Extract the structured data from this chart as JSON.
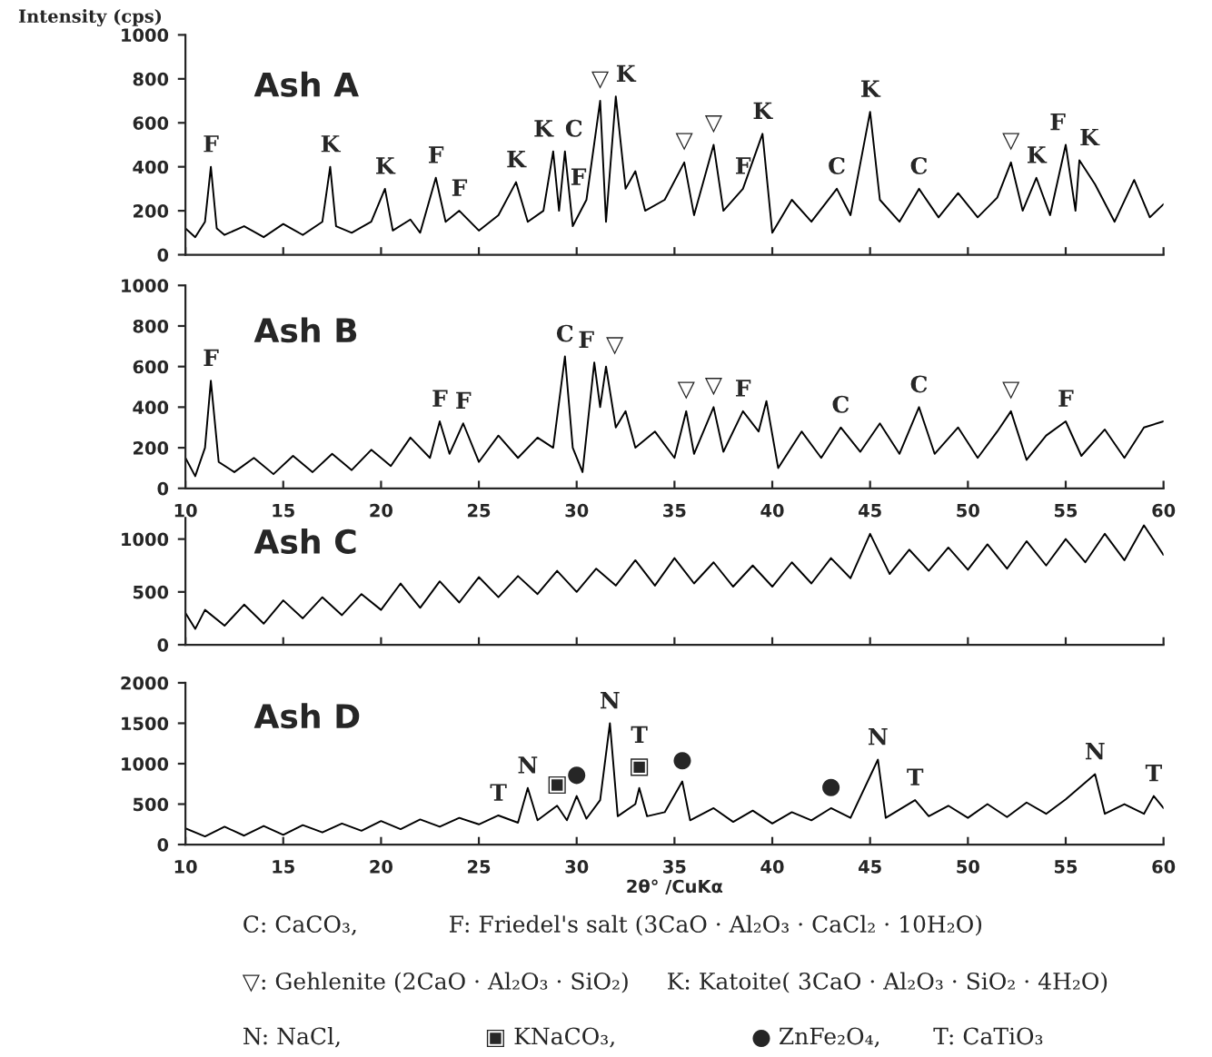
{
  "chart_data": [
    {
      "type": "line",
      "title": "Ash A",
      "ylabel": "Intensity (cps)",
      "xlim": [
        10,
        60
      ],
      "xticks": [
        10,
        15,
        20,
        25,
        30,
        35,
        40,
        45,
        50,
        55,
        60
      ],
      "ylim": [
        0,
        1000
      ],
      "yticks": [
        0,
        200,
        400,
        600,
        800,
        1000
      ],
      "tick_labels": "y",
      "x": [
        10,
        10.5,
        11,
        11.3,
        11.6,
        12,
        13,
        14,
        15,
        16,
        17,
        17.4,
        17.7,
        18.5,
        19.5,
        20.2,
        20.6,
        21.5,
        22,
        22.8,
        23.3,
        24,
        25,
        26,
        26.9,
        27.5,
        28.3,
        28.8,
        29.1,
        29.4,
        29.8,
        30.5,
        31.2,
        31.5,
        32,
        32.5,
        33,
        33.5,
        34.5,
        35.5,
        36,
        37,
        37.5,
        38.5,
        39.5,
        40,
        41,
        42,
        43.3,
        44,
        45,
        45.5,
        46.5,
        47.5,
        48.5,
        49.5,
        50.5,
        51.5,
        52.2,
        52.8,
        53.5,
        54.2,
        55,
        55.5,
        55.7,
        56.5,
        57.5,
        58.5,
        59.3,
        60
      ],
      "series": [
        {
          "color": "#000000",
          "values": [
            120,
            80,
            150,
            400,
            120,
            90,
            130,
            80,
            140,
            90,
            150,
            400,
            130,
            100,
            150,
            300,
            110,
            160,
            100,
            350,
            150,
            200,
            110,
            180,
            330,
            150,
            200,
            470,
            200,
            470,
            130,
            250,
            700,
            150,
            720,
            300,
            380,
            200,
            250,
            420,
            180,
            500,
            200,
            300,
            550,
            100,
            250,
            150,
            300,
            180,
            650,
            250,
            150,
            300,
            170,
            280,
            170,
            260,
            420,
            200,
            350,
            180,
            500,
            200,
            430,
            320,
            150,
            340,
            170,
            230
          ]
        }
      ],
      "annotations": [
        {
          "text": "F",
          "x": 11.3,
          "y": 400
        },
        {
          "text": "K",
          "x": 17.4,
          "y": 400
        },
        {
          "text": "K",
          "x": 20.2,
          "y": 300
        },
        {
          "text": "F",
          "x": 22.8,
          "y": 350
        },
        {
          "text": "F",
          "x": 24,
          "y": 200
        },
        {
          "text": "K",
          "x": 26.9,
          "y": 330
        },
        {
          "text": "K",
          "x": 28.8,
          "y": 470
        },
        {
          "text": "C",
          "x": 29.4,
          "y": 470
        },
        {
          "text": "F",
          "x": 30.5,
          "y": 250
        },
        {
          "text": "▽",
          "x": 31.2,
          "y": 700
        },
        {
          "text": "K",
          "x": 32,
          "y": 720
        },
        {
          "text": "▽",
          "x": 35.5,
          "y": 420
        },
        {
          "text": "▽",
          "x": 37,
          "y": 500
        },
        {
          "text": "F",
          "x": 38.5,
          "y": 300
        },
        {
          "text": "K",
          "x": 39.5,
          "y": 550
        },
        {
          "text": "C",
          "x": 43.3,
          "y": 300
        },
        {
          "text": "K",
          "x": 45,
          "y": 650
        },
        {
          "text": "C",
          "x": 47.5,
          "y": 300
        },
        {
          "text": "▽",
          "x": 52.2,
          "y": 420
        },
        {
          "text": "K",
          "x": 53.5,
          "y": 350
        },
        {
          "text": "F",
          "x": 55,
          "y": 500
        },
        {
          "text": "K",
          "x": 55.7,
          "y": 430
        }
      ]
    },
    {
      "type": "line",
      "title": "Ash B",
      "xlim": [
        10,
        60
      ],
      "xticks": [
        10,
        15,
        20,
        25,
        30,
        35,
        40,
        45,
        50,
        55,
        60
      ],
      "ylim": [
        0,
        1000
      ],
      "yticks": [
        0,
        200,
        400,
        600,
        800,
        1000
      ],
      "x": [
        10,
        10.5,
        11,
        11.3,
        11.7,
        12.5,
        13.5,
        14.5,
        15.5,
        16.5,
        17.5,
        18.5,
        19.5,
        20.5,
        21.5,
        22.5,
        23,
        23.5,
        24.2,
        25,
        26,
        27,
        28,
        28.8,
        29.4,
        29.8,
        30.3,
        30.9,
        31.2,
        31.5,
        32,
        32.5,
        33,
        34,
        35,
        35.6,
        36,
        37,
        37.5,
        38.5,
        39.3,
        39.7,
        40.3,
        41.5,
        42.5,
        43.5,
        44.5,
        45.5,
        46.5,
        47.5,
        48.3,
        49.5,
        50.5,
        51.5,
        52.2,
        53,
        54,
        55,
        55.8,
        57,
        58,
        59,
        60
      ],
      "series": [
        {
          "color": "#000000",
          "values": [
            150,
            60,
            200,
            530,
            130,
            80,
            150,
            70,
            160,
            80,
            170,
            90,
            190,
            110,
            250,
            150,
            330,
            170,
            320,
            130,
            260,
            150,
            250,
            200,
            650,
            200,
            80,
            620,
            400,
            600,
            300,
            380,
            200,
            280,
            150,
            380,
            170,
            400,
            180,
            380,
            280,
            430,
            100,
            280,
            150,
            300,
            180,
            320,
            170,
            400,
            170,
            300,
            150,
            280,
            380,
            140,
            260,
            330,
            160,
            290,
            150,
            300,
            330
          ]
        }
      ],
      "annotations": [
        {
          "text": "F",
          "x": 11.3,
          "y": 530
        },
        {
          "text": "F",
          "x": 23,
          "y": 330
        },
        {
          "text": "F",
          "x": 24.2,
          "y": 320
        },
        {
          "text": "C",
          "x": 29.4,
          "y": 650
        },
        {
          "text": "F",
          "x": 30.9,
          "y": 620
        },
        {
          "text": "▽",
          "x": 31.5,
          "y": 600
        },
        {
          "text": "▽",
          "x": 35.6,
          "y": 380
        },
        {
          "text": "▽",
          "x": 37,
          "y": 400
        },
        {
          "text": "F",
          "x": 38.5,
          "y": 380
        },
        {
          "text": "C",
          "x": 43.5,
          "y": 300
        },
        {
          "text": "C",
          "x": 47.5,
          "y": 400
        },
        {
          "text": "▽",
          "x": 52.2,
          "y": 380
        },
        {
          "text": "F",
          "x": 55,
          "y": 330
        }
      ]
    },
    {
      "type": "line",
      "title": "Ash C",
      "xlim": [
        10,
        60
      ],
      "xticks": [
        10,
        15,
        20,
        25,
        30,
        35,
        40,
        45,
        50,
        55,
        60
      ],
      "ylim": [
        0,
        1200
      ],
      "yticks": [
        0,
        500,
        1000
      ],
      "tick_labels": "y",
      "x": [
        10,
        10.5,
        11,
        12,
        13,
        14,
        15,
        16,
        17,
        18,
        19,
        20,
        21,
        22,
        23,
        24,
        25,
        26,
        27,
        28,
        29,
        30,
        31,
        32,
        33,
        34,
        35,
        36,
        37,
        38,
        39,
        40,
        41,
        42,
        43,
        44,
        45,
        46,
        47,
        48,
        49,
        50,
        51,
        52,
        53,
        54,
        55,
        56,
        57,
        58,
        59,
        60
      ],
      "series": [
        {
          "color": "#000000",
          "values": [
            300,
            150,
            330,
            180,
            380,
            200,
            420,
            250,
            450,
            280,
            480,
            330,
            580,
            350,
            600,
            400,
            640,
            450,
            650,
            480,
            700,
            500,
            720,
            560,
            800,
            560,
            820,
            580,
            780,
            550,
            750,
            550,
            780,
            580,
            820,
            630,
            1050,
            670,
            900,
            700,
            920,
            710,
            950,
            720,
            980,
            750,
            1000,
            780,
            1050,
            800,
            1130,
            850
          ]
        }
      ]
    },
    {
      "type": "line",
      "title": "Ash D",
      "xlabel": "2θ° /CuKα",
      "xlim": [
        10,
        60
      ],
      "xticks": [
        10,
        15,
        20,
        25,
        30,
        35,
        40,
        45,
        50,
        55,
        60
      ],
      "ylim": [
        0,
        2000
      ],
      "yticks": [
        0,
        500,
        1000,
        1500,
        2000
      ],
      "x": [
        10,
        11,
        12,
        13,
        14,
        15,
        16,
        17,
        18,
        19,
        20,
        21,
        22,
        23,
        24,
        25,
        26,
        27,
        27.5,
        28,
        29,
        29.5,
        30,
        30.5,
        31.2,
        31.7,
        32.1,
        33,
        33.2,
        33.6,
        34.5,
        35.4,
        35.8,
        37,
        38,
        39,
        40,
        41,
        42,
        43,
        44,
        45.4,
        45.8,
        47.3,
        48,
        49,
        50,
        51,
        52,
        53,
        54,
        55,
        56.5,
        57,
        58,
        59,
        59.5,
        60
      ],
      "series": [
        {
          "color": "#000000",
          "values": [
            200,
            100,
            220,
            110,
            230,
            120,
            240,
            150,
            260,
            170,
            290,
            190,
            310,
            220,
            330,
            250,
            360,
            270,
            700,
            300,
            480,
            300,
            600,
            320,
            550,
            1500,
            350,
            500,
            700,
            350,
            400,
            780,
            300,
            450,
            280,
            420,
            260,
            400,
            300,
            450,
            330,
            1050,
            330,
            550,
            350,
            480,
            330,
            500,
            340,
            520,
            380,
            560,
            870,
            380,
            500,
            380,
            600,
            450
          ]
        }
      ],
      "annotations": [
        {
          "text": "T",
          "x": 26,
          "y": 360
        },
        {
          "text": "N",
          "x": 27.5,
          "y": 700
        },
        {
          "text": "▣",
          "x": 29,
          "y": 480
        },
        {
          "text": "●",
          "x": 30,
          "y": 600
        },
        {
          "text": "N",
          "x": 31.7,
          "y": 1500
        },
        {
          "text": "▣",
          "x": 33.2,
          "y": 700
        },
        {
          "text": "T",
          "x": 33.2,
          "y": 700
        },
        {
          "text": "●",
          "x": 35.4,
          "y": 780
        },
        {
          "text": "●",
          "x": 43,
          "y": 450
        },
        {
          "text": "N",
          "x": 45.4,
          "y": 1050
        },
        {
          "text": "T",
          "x": 47.3,
          "y": 550
        },
        {
          "text": "N",
          "x": 56.5,
          "y": 870
        },
        {
          "text": "T",
          "x": 59.5,
          "y": 600
        },
        "C: CaCO₃,",
        "F: Friedel's salt (3CaO · Al₂O₃ · CaCl₂ · 10H₂O)",
        "▽: Gehlenite (2CaO · Al₂O₃ · SiO₂)",
        "K: Katoite( 3CaO · Al₂O₃ · SiO₂ · 4H₂O)",
        "N: NaCl,",
        "▣ KNaCO₃,",
        "● ZnFe₂O₄,",
        "T: CaTiO₃"
      ]
    }
  ]
}
